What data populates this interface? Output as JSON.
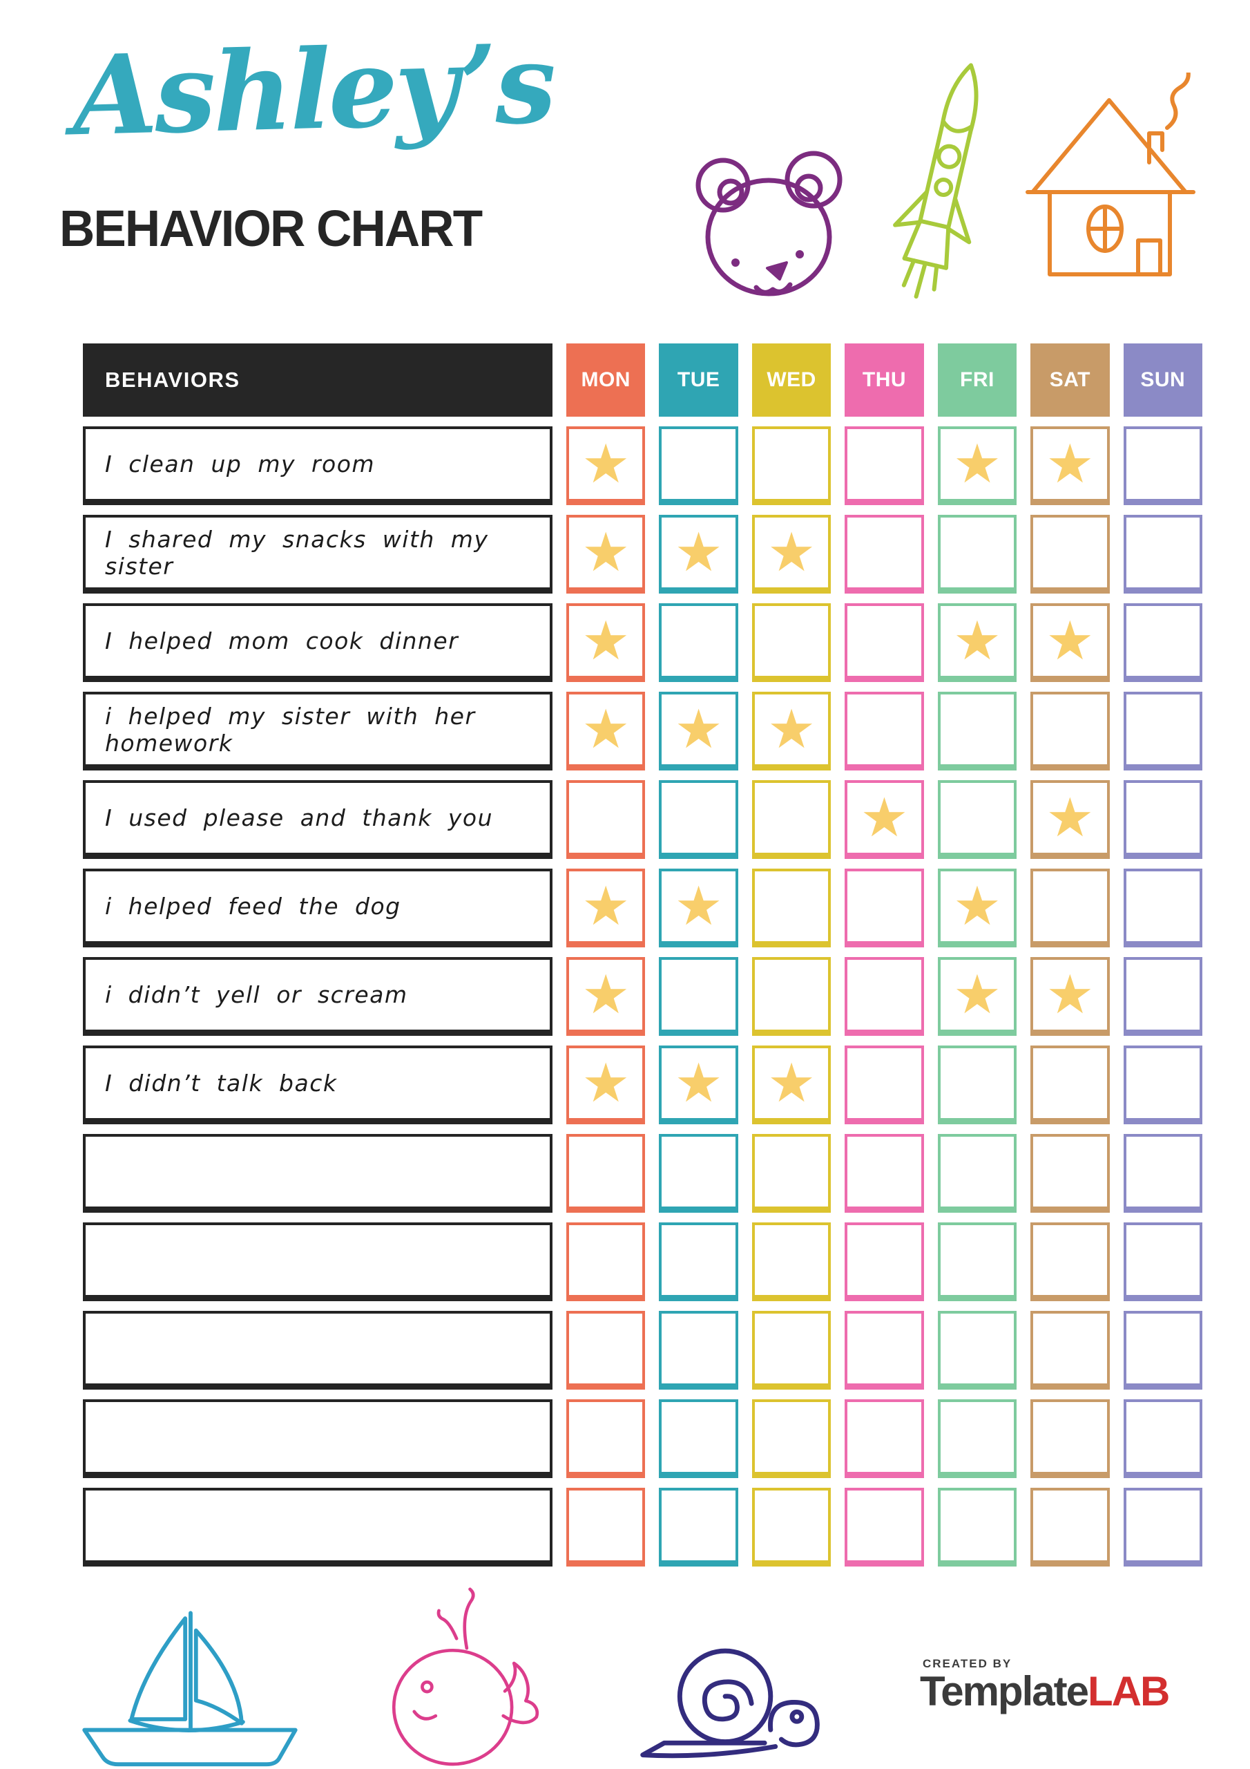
{
  "header": {
    "owner_name": "Ashley’s",
    "owner_name_color": "#35A9BD",
    "title": "BEHAVIOR CHART",
    "title_color": "#262626"
  },
  "decorations": {
    "bear_color": "#7C2C80",
    "rocket_color": "#A8CA3B",
    "house_color": "#E8862D",
    "sailboat_color": "#2E9EC6",
    "whale_color": "#DC3D8C",
    "snail_color": "#332C7E"
  },
  "table": {
    "behaviors_header": "BEHAVIORS",
    "header_bg": "#262626",
    "label_border_color": "#242424",
    "star_glyph": "★",
    "star_color": "#F8CE6B",
    "days": [
      {
        "label": "MON",
        "color": "#ED7053"
      },
      {
        "label": "TUE",
        "color": "#2FA5B3"
      },
      {
        "label": "WED",
        "color": "#DCC32F"
      },
      {
        "label": "THU",
        "color": "#EE6CAE"
      },
      {
        "label": "FRI",
        "color": "#7ECB9E"
      },
      {
        "label": "SAT",
        "color": "#C89B68"
      },
      {
        "label": "SUN",
        "color": "#8B8AC6"
      }
    ],
    "rows": [
      {
        "behavior": "I clean up my room",
        "stars": [
          true,
          false,
          false,
          false,
          true,
          true,
          false
        ]
      },
      {
        "behavior": "I shared my snacks with my sister",
        "stars": [
          true,
          true,
          true,
          false,
          false,
          false,
          false
        ]
      },
      {
        "behavior": "I helped mom cook dinner",
        "stars": [
          true,
          false,
          false,
          false,
          true,
          true,
          false
        ]
      },
      {
        "behavior": "i helped my sister with her homework",
        "stars": [
          true,
          true,
          true,
          false,
          false,
          false,
          false
        ]
      },
      {
        "behavior": "I used please and thank you",
        "stars": [
          false,
          false,
          false,
          true,
          false,
          true,
          false
        ]
      },
      {
        "behavior": "i helped feed the dog",
        "stars": [
          true,
          true,
          false,
          false,
          true,
          false,
          false
        ]
      },
      {
        "behavior": "i didn’t yell or scream",
        "stars": [
          true,
          false,
          false,
          false,
          true,
          true,
          false
        ]
      },
      {
        "behavior": "I didn’t talk back",
        "stars": [
          true,
          true,
          true,
          false,
          false,
          false,
          false
        ]
      },
      {
        "behavior": "",
        "stars": [
          false,
          false,
          false,
          false,
          false,
          false,
          false
        ]
      },
      {
        "behavior": "",
        "stars": [
          false,
          false,
          false,
          false,
          false,
          false,
          false
        ]
      },
      {
        "behavior": "",
        "stars": [
          false,
          false,
          false,
          false,
          false,
          false,
          false
        ]
      },
      {
        "behavior": "",
        "stars": [
          false,
          false,
          false,
          false,
          false,
          false,
          false
        ]
      },
      {
        "behavior": "",
        "stars": [
          false,
          false,
          false,
          false,
          false,
          false,
          false
        ]
      }
    ]
  },
  "footer": {
    "created_by": "CREATED BY",
    "brand_primary": "Template",
    "brand_accent": "LAB",
    "brand_primary_color": "#3B3B3B",
    "brand_accent_color": "#D32F2F"
  }
}
